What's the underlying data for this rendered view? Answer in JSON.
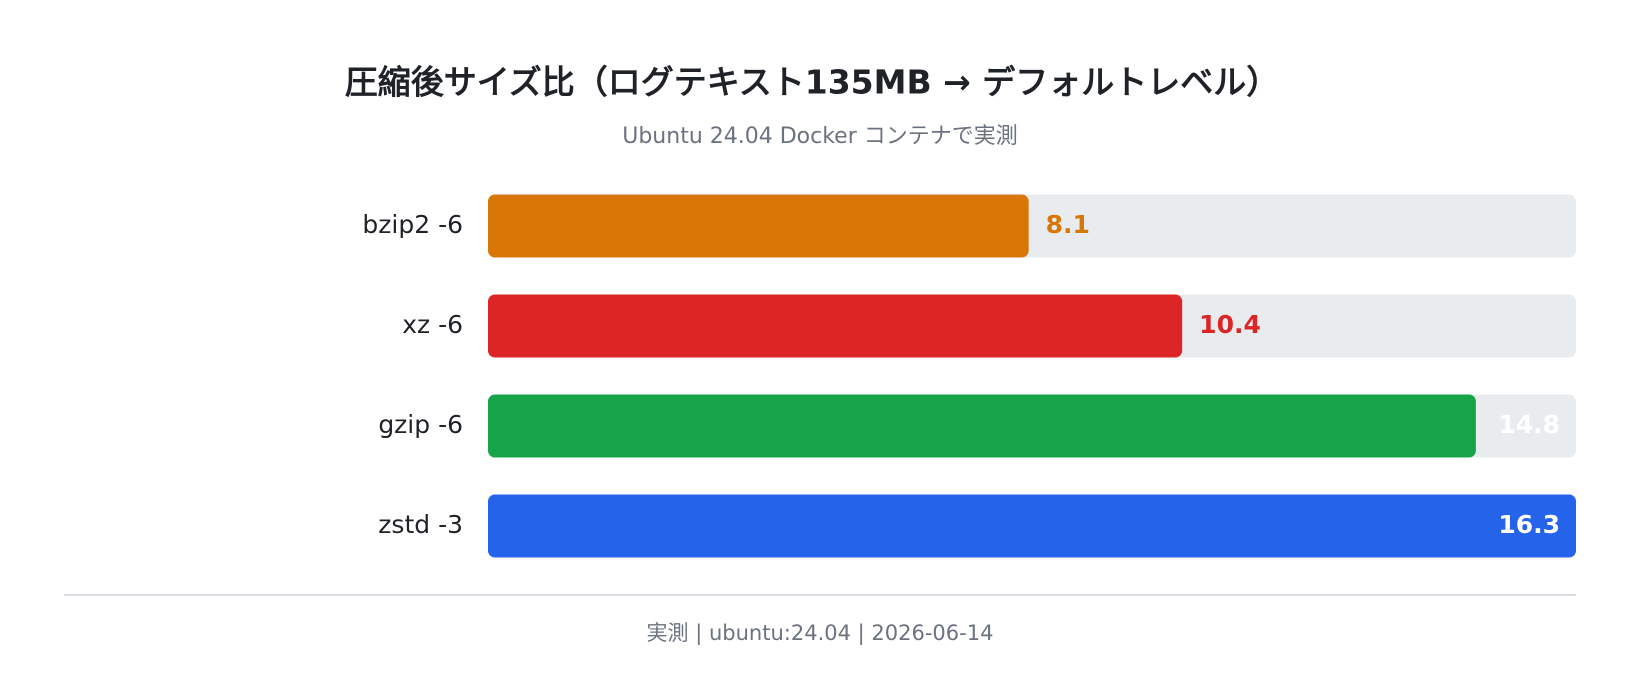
{
  "chart_data": {
    "type": "bar",
    "orientation": "horizontal",
    "title": "圧縮後サイズ比（ログテキスト135MB → デフォルトレベル）",
    "subtitle": "Ubuntu 24.04 Docker コンテナで実測",
    "categories": [
      "bzip2 -6",
      "xz -6",
      "gzip -6",
      "zstd -3"
    ],
    "values": [
      8.1,
      10.4,
      14.8,
      16.3
    ],
    "colors": [
      "#d97706",
      "#dc2626",
      "#16a34a",
      "#2563eb"
    ],
    "track_color": "#e9ecef"
  },
  "footer": "実測 | ubuntu:24.04 | 2026-06-14"
}
